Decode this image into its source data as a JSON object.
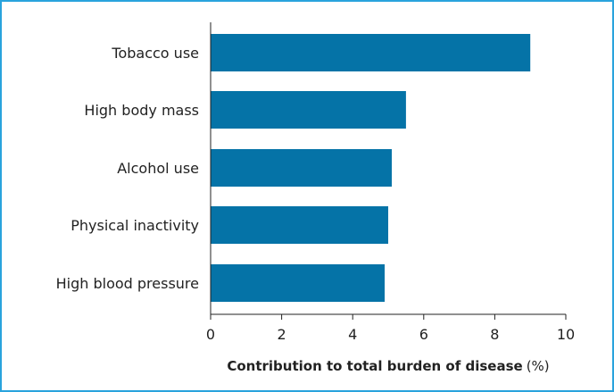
{
  "colors": {
    "bar": "#0573a7",
    "border": "#29a3dd",
    "axis": "#222222"
  },
  "chart_data": {
    "type": "bar",
    "orientation": "horizontal",
    "categories": [
      "Tobacco use",
      "High body mass",
      "Alcohol use",
      "Physical inactivity",
      "High blood pressure"
    ],
    "values": [
      9.0,
      5.5,
      5.1,
      5.0,
      4.9
    ],
    "title": "",
    "xlabel": "Contribution to total burden of disease",
    "xlabel_unit": "(%)",
    "ylabel": "",
    "xlim": [
      0,
      10
    ],
    "xticks": [
      "0",
      "2",
      "4",
      "6",
      "8",
      "10"
    ],
    "grid": false,
    "legend": "none"
  }
}
